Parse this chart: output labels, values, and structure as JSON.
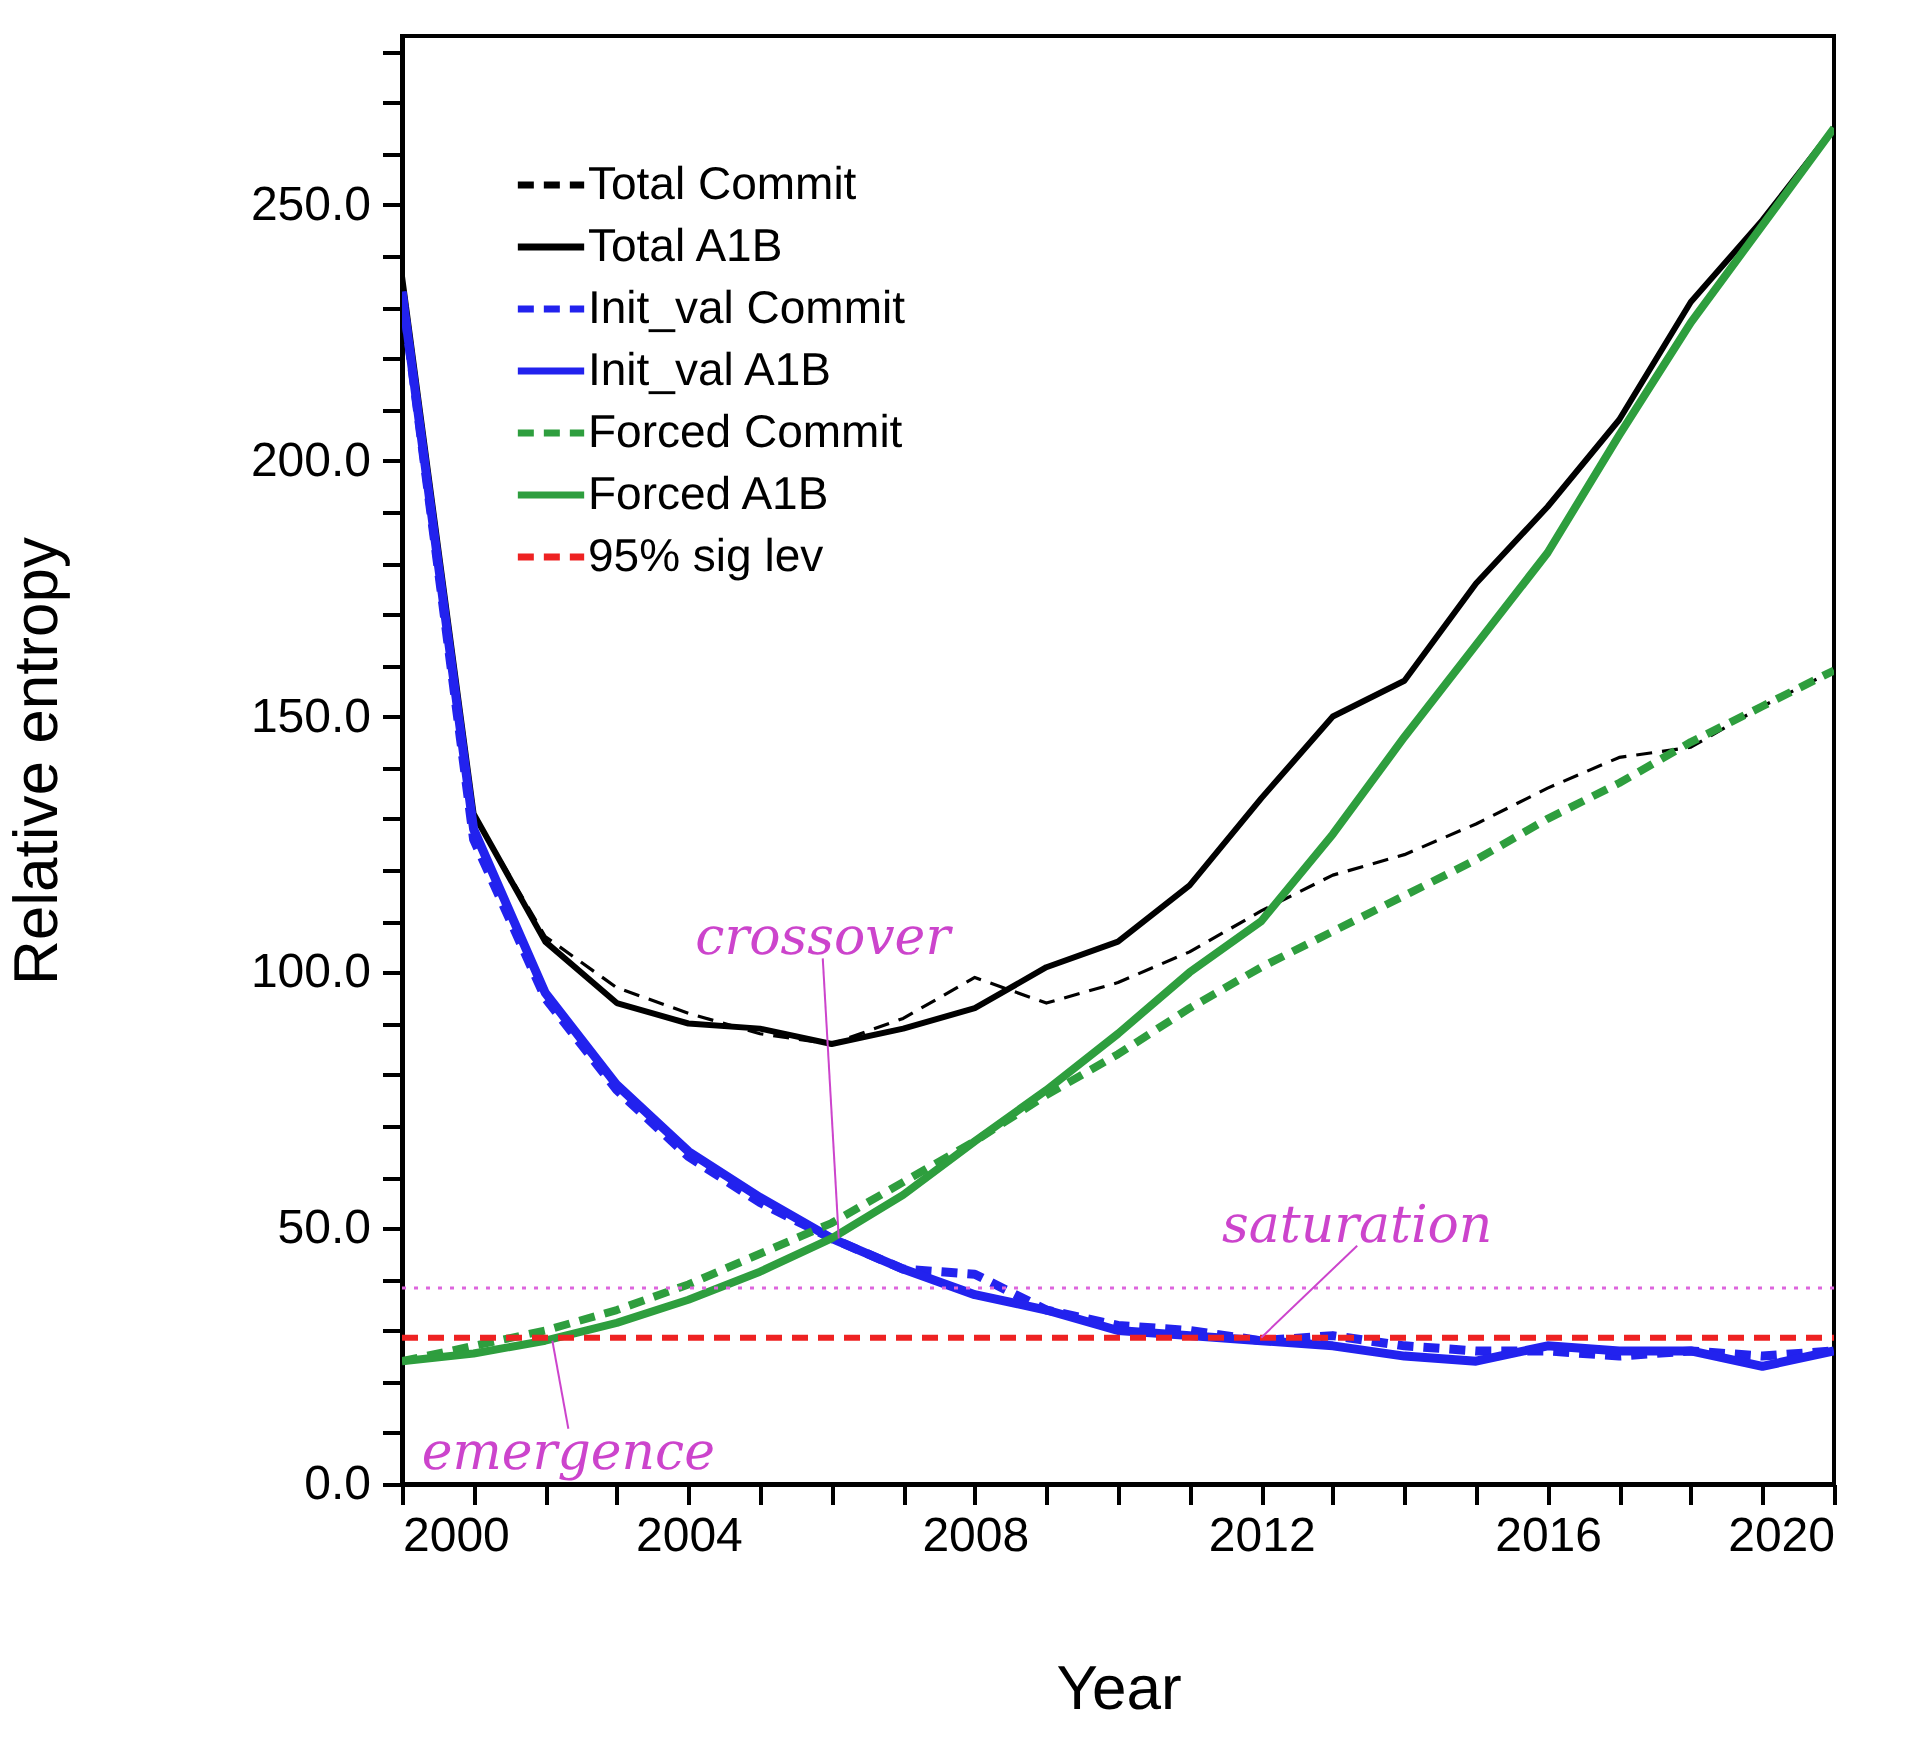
{
  "chart_data": {
    "type": "line",
    "xlabel": "Year",
    "ylabel": "Relative entropy",
    "x": [
      2000,
      2001,
      2002,
      2003,
      2004,
      2005,
      2006,
      2007,
      2008,
      2009,
      2010,
      2011,
      2012,
      2013,
      2014,
      2015,
      2016,
      2017,
      2018,
      2019,
      2020
    ],
    "series": [
      {
        "name": "Total Commit",
        "color": "#000000",
        "line_style": "dashed",
        "values": [
          236,
          131,
          107,
          97,
          92,
          88,
          86,
          91,
          99,
          94,
          98,
          104,
          112,
          119,
          123,
          129,
          136,
          142,
          144,
          152,
          159
        ]
      },
      {
        "name": "Total A1B",
        "color": "#000000",
        "line_style": "solid",
        "values": [
          236,
          131,
          106,
          94,
          90,
          89,
          86,
          89,
          93,
          101,
          106,
          117,
          134,
          150,
          157,
          176,
          191,
          208,
          231,
          247,
          265
        ]
      },
      {
        "name": "Init_val Commit",
        "color": "#2222ee",
        "line_style": "dashed",
        "values": [
          233,
          126,
          95,
          77,
          64,
          55,
          48,
          42,
          41,
          34,
          31,
          30,
          28,
          29,
          27,
          26,
          26,
          25,
          26,
          25,
          26
        ]
      },
      {
        "name": "Init_val A1B",
        "color": "#2222ee",
        "line_style": "solid",
        "values": [
          233,
          128,
          96,
          78,
          65,
          56,
          48,
          42,
          37,
          34,
          30,
          29,
          28,
          27,
          25,
          24,
          27,
          26,
          26,
          23,
          26
        ]
      },
      {
        "name": "Forced Commit",
        "color": "#2e9e3e",
        "line_style": "dashed",
        "values": [
          24,
          27,
          30,
          34,
          39,
          45,
          51,
          59,
          67,
          76,
          84,
          93,
          101,
          108,
          115,
          122,
          130,
          137,
          145,
          152,
          159
        ]
      },
      {
        "name": "Forced A1B",
        "color": "#2e9e3e",
        "line_style": "solid",
        "values": [
          24,
          25.5,
          28,
          31.5,
          36,
          41.5,
          48,
          56.5,
          67,
          77,
          88,
          100,
          110,
          127,
          146,
          164,
          182,
          205,
          227,
          246,
          265
        ]
      },
      {
        "name": "95% sig lev",
        "color": "#ee2222",
        "line_style": "dashed",
        "values": [
          28.6,
          28.6,
          28.6,
          28.6,
          28.6,
          28.6,
          28.6,
          28.6,
          28.6,
          28.6,
          28.6,
          28.6,
          28.6,
          28.6,
          28.6,
          28.6,
          28.6,
          28.6,
          28.6,
          28.6,
          28.6
        ]
      }
    ],
    "ref_lines": [
      {
        "axis": "y",
        "value": 38.3,
        "color": "#dd66dd",
        "line_style": "dotted"
      }
    ],
    "annotations": [
      {
        "text": "crossover",
        "x": 2006.1,
        "y": 48
      },
      {
        "text": "saturation",
        "x": 2012,
        "y": 28.6
      },
      {
        "text": "emergence",
        "x": 2002.1,
        "y": 28
      }
    ],
    "xlim": [
      2000,
      2020
    ],
    "xticks": [
      2000,
      {
        "value": 2001,
        "label": null
      },
      {
        "value": 2002,
        "label": null
      },
      {
        "value": 2003,
        "label": null
      },
      2004,
      {
        "value": 2005,
        "label": null
      },
      {
        "value": 2006,
        "label": null
      },
      {
        "value": 2007,
        "label": null
      },
      2008,
      {
        "value": 2009,
        "label": null
      },
      {
        "value": 2010,
        "label": null
      },
      {
        "value": 2011,
        "label": null
      },
      2012,
      {
        "value": 2013,
        "label": null
      },
      {
        "value": 2014,
        "label": null
      },
      {
        "value": 2015,
        "label": null
      },
      2016,
      {
        "value": 2017,
        "label": null
      },
      {
        "value": 2018,
        "label": null
      },
      {
        "value": 2019,
        "label": null
      },
      2020
    ],
    "ylim": [
      0,
      283
    ],
    "yticks": [
      {
        "value": 0,
        "label": "0.0"
      },
      {
        "value": 10,
        "label": null
      },
      {
        "value": 20,
        "label": null
      },
      {
        "value": 30,
        "label": null
      },
      {
        "value": 40,
        "label": null
      },
      {
        "value": 50,
        "label": "50.0"
      },
      {
        "value": 60,
        "label": null
      },
      {
        "value": 70,
        "label": null
      },
      {
        "value": 80,
        "label": null
      },
      {
        "value": 90,
        "label": null
      },
      {
        "value": 100,
        "label": "100.0"
      },
      {
        "value": 110,
        "label": null
      },
      {
        "value": 120,
        "label": null
      },
      {
        "value": 130,
        "label": null
      },
      {
        "value": 140,
        "label": null
      },
      {
        "value": 150,
        "label": "150.0"
      },
      {
        "value": 160,
        "label": null
      },
      {
        "value": 170,
        "label": null
      },
      {
        "value": 180,
        "label": null
      },
      {
        "value": 190,
        "label": null
      },
      {
        "value": 200,
        "label": "200.0"
      },
      {
        "value": 210,
        "label": null
      },
      {
        "value": 220,
        "label": null
      },
      {
        "value": 230,
        "label": null
      },
      {
        "value": 240,
        "label": null
      },
      {
        "value": 250,
        "label": "250.0"
      },
      {
        "value": 260,
        "label": null
      },
      {
        "value": 270,
        "label": null
      },
      {
        "value": 280,
        "label": null
      }
    ],
    "grid": false,
    "legend": "top left"
  }
}
